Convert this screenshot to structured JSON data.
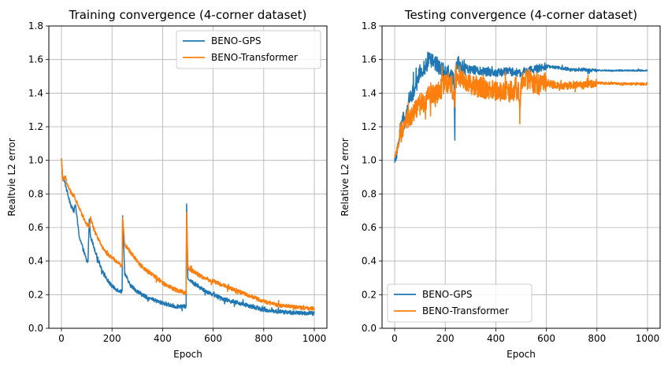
{
  "chart_data": [
    {
      "type": "line",
      "title": "Training convergence (4-corner dataset)",
      "xlabel": "Epoch",
      "ylabel": "Realtvie L2 error",
      "xlim": [
        0,
        1000
      ],
      "ylim": [
        0.0,
        1.8
      ],
      "xticks": [
        "0",
        "200",
        "400",
        "600",
        "800",
        "1000"
      ],
      "yticks": [
        "0.0",
        "0.2",
        "0.4",
        "0.6",
        "0.8",
        "1.0",
        "1.2",
        "1.4",
        "1.6",
        "1.8"
      ],
      "grid": true,
      "legend_position": "upper-right",
      "series": [
        {
          "name": "BENO-GPS",
          "color": "#1f77b4",
          "x": [
            0,
            5,
            15,
            25,
            40,
            50,
            55,
            70,
            90,
            100,
            105,
            110,
            115,
            125,
            140,
            160,
            180,
            200,
            220,
            235,
            240,
            242,
            250,
            270,
            300,
            330,
            360,
            400,
            450,
            490,
            493,
            495,
            500,
            520,
            550,
            600,
            650,
            700,
            750,
            800,
            850,
            900,
            950,
            1000
          ],
          "y": [
            1.01,
            0.9,
            0.86,
            0.8,
            0.72,
            0.7,
            0.74,
            0.55,
            0.45,
            0.4,
            0.4,
            0.65,
            0.55,
            0.5,
            0.43,
            0.35,
            0.29,
            0.25,
            0.23,
            0.22,
            0.22,
            0.67,
            0.33,
            0.26,
            0.22,
            0.19,
            0.17,
            0.15,
            0.13,
            0.13,
            0.13,
            0.74,
            0.3,
            0.27,
            0.24,
            0.2,
            0.17,
            0.15,
            0.13,
            0.11,
            0.1,
            0.095,
            0.09,
            0.09
          ]
        },
        {
          "name": "BENO-Transformer",
          "color": "#ff7f0e",
          "x": [
            0,
            5,
            15,
            25,
            40,
            50,
            60,
            80,
            100,
            110,
            115,
            130,
            150,
            170,
            200,
            230,
            240,
            242,
            250,
            280,
            310,
            340,
            370,
            400,
            450,
            490,
            493,
            495,
            500,
            550,
            600,
            650,
            700,
            750,
            800,
            850,
            900,
            950,
            1000
          ],
          "y": [
            1.01,
            0.88,
            0.9,
            0.85,
            0.8,
            0.79,
            0.75,
            0.68,
            0.62,
            0.6,
            0.66,
            0.58,
            0.52,
            0.46,
            0.42,
            0.38,
            0.37,
            0.66,
            0.5,
            0.44,
            0.38,
            0.34,
            0.31,
            0.27,
            0.23,
            0.21,
            0.21,
            0.69,
            0.36,
            0.31,
            0.28,
            0.25,
            0.22,
            0.19,
            0.16,
            0.14,
            0.13,
            0.12,
            0.12
          ]
        }
      ]
    },
    {
      "type": "line",
      "title": "Testing convergence (4-corner dataset)",
      "xlabel": "Epoch",
      "ylabel": "Relative L2  error",
      "xlim": [
        0,
        1000
      ],
      "ylim": [
        0.0,
        1.8
      ],
      "xticks": [
        "0",
        "200",
        "400",
        "600",
        "800",
        "1000"
      ],
      "yticks": [
        "0.0",
        "0.2",
        "0.4",
        "0.6",
        "0.8",
        "1.0",
        "1.2",
        "1.4",
        "1.6",
        "1.8"
      ],
      "grid": true,
      "legend_position": "lower-left",
      "series": [
        {
          "name": "BENO-GPS",
          "color": "#1f77b4",
          "x": [
            0,
            10,
            20,
            30,
            40,
            50,
            60,
            80,
            100,
            120,
            140,
            160,
            180,
            200,
            220,
            235,
            238,
            240,
            245,
            260,
            280,
            300,
            350,
            400,
            450,
            500,
            550,
            600,
            650,
            700,
            750,
            800,
            850,
            900,
            950,
            1000
          ],
          "y": [
            1.0,
            1.05,
            1.15,
            1.25,
            1.22,
            1.3,
            1.38,
            1.42,
            1.52,
            1.56,
            1.6,
            1.58,
            1.55,
            1.52,
            1.5,
            1.48,
            1.15,
            1.5,
            1.6,
            1.56,
            1.55,
            1.54,
            1.53,
            1.52,
            1.53,
            1.52,
            1.54,
            1.56,
            1.55,
            1.54,
            1.54,
            1.535,
            1.535,
            1.535,
            1.535,
            1.535
          ]
        },
        {
          "name": "BENO-Transformer",
          "color": "#ff7f0e",
          "x": [
            0,
            10,
            20,
            30,
            40,
            50,
            60,
            80,
            100,
            120,
            140,
            160,
            180,
            200,
            220,
            238,
            240,
            245,
            260,
            280,
            300,
            350,
            400,
            450,
            490,
            495,
            500,
            510,
            530,
            560,
            600,
            650,
            700,
            750,
            800,
            850,
            900,
            950,
            1000
          ],
          "y": [
            1.0,
            1.07,
            1.12,
            1.2,
            1.22,
            1.25,
            1.24,
            1.3,
            1.33,
            1.36,
            1.4,
            1.38,
            1.42,
            1.45,
            1.47,
            1.38,
            1.52,
            1.48,
            1.5,
            1.46,
            1.45,
            1.43,
            1.42,
            1.41,
            1.42,
            1.25,
            1.45,
            1.5,
            1.48,
            1.45,
            1.46,
            1.44,
            1.45,
            1.45,
            1.46,
            1.46,
            1.455,
            1.455,
            1.455
          ]
        }
      ]
    }
  ]
}
